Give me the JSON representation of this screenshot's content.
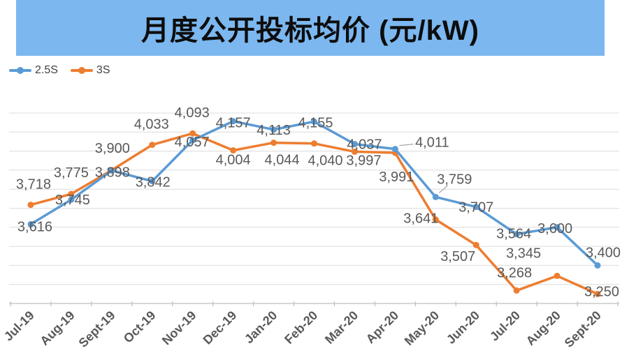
{
  "title": "月度公开投标均价 (元/kW)",
  "colors": {
    "banner_bg": "#7cb7ef",
    "series_2_5s": "#5B9BD5",
    "series_3s": "#ED7D31",
    "data_label_text": "#595959",
    "axis_label_text": "#595959",
    "gridline": "#DCDCDC",
    "axis_line": "#BFBFBF",
    "leader_line": "#A6A6A6",
    "title_text": "#0d0d0d"
  },
  "legend": {
    "items": [
      "2.5S",
      "3S"
    ]
  },
  "chart_data": {
    "type": "line",
    "title": "月度公开投标均价 (元/kW)",
    "categories": [
      "Jul-19",
      "Aug-19",
      "Sept-19",
      "Oct-19",
      "Nov-19",
      "Dec-19",
      "Jan-20",
      "Feb-20",
      "Mar-20",
      "Apr-20",
      "May-20",
      "Jun-20",
      "Jul-20",
      "Aug-20",
      "Sept-20"
    ],
    "series": [
      {
        "name": "2.5S",
        "color": "#5B9BD5",
        "values": [
          3616,
          3745,
          3898,
          3842,
          4057,
          4157,
          4113,
          4155,
          4037,
          4011,
          3759,
          3707,
          3564,
          3600,
          3400
        ],
        "labels": [
          "3,616",
          "3,745",
          "3,898",
          "3,842",
          "4,057",
          "4,157",
          "4,113",
          "4,155",
          "4,037",
          "4,011",
          "3,759",
          "3,707",
          "3,564",
          "3,600",
          "3,400"
        ]
      },
      {
        "name": "3S",
        "color": "#ED7D31",
        "values": [
          3718,
          3775,
          3900,
          4033,
          4093,
          4004,
          4044,
          4040,
          3997,
          3991,
          3641,
          3507,
          3268,
          3345,
          3250
        ],
        "labels": [
          "3,718",
          "3,775",
          "3,900",
          "4,033",
          "4,093",
          "4,004",
          "4,044",
          "4,040",
          "3,997",
          "3,991",
          "3,641",
          "3,507",
          "3,268",
          "3,345",
          "3,250"
        ]
      }
    ],
    "xlabel": "",
    "ylabel": "",
    "ylim": [
      3200,
      4200
    ],
    "grid_step": 100,
    "grid": "horizontal gridlines, no y-axis tick labels",
    "legend_position": "top-left",
    "data_labels": "every point labeled in gray",
    "marker": "circle"
  }
}
